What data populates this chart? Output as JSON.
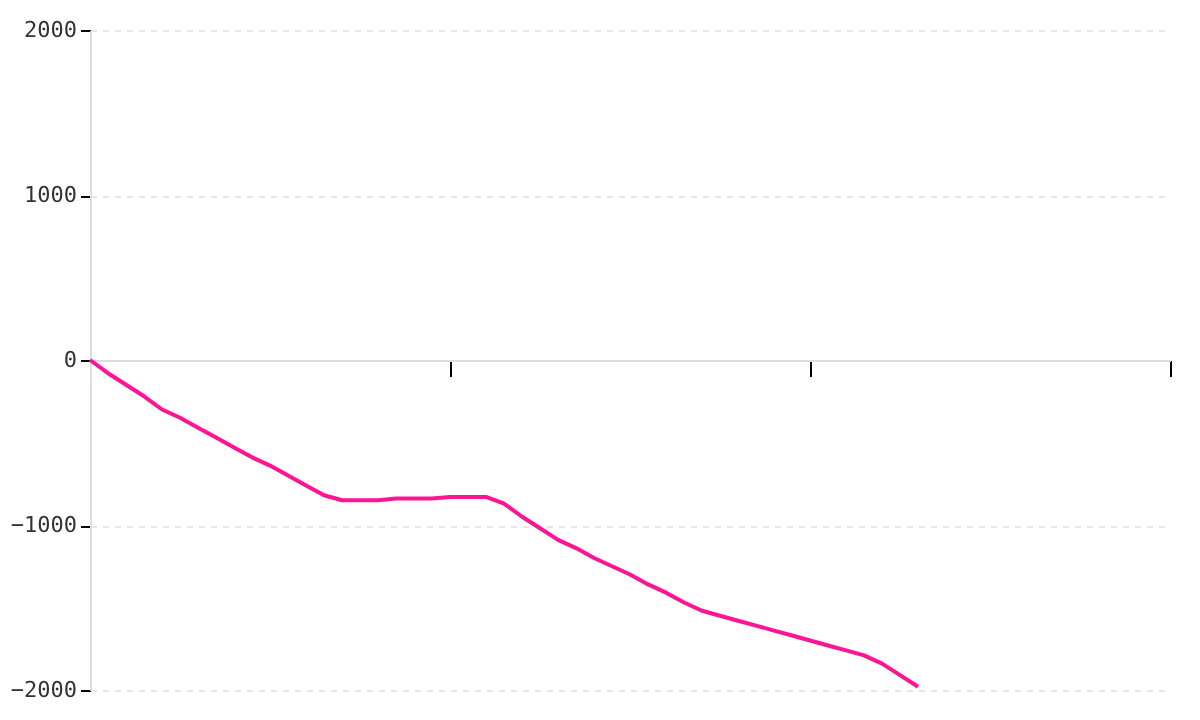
{
  "chart_data": {
    "type": "line",
    "categories": [
      null,
      null,
      null,
      null,
      null,
      null,
      null,
      null,
      null,
      null,
      null,
      null,
      null,
      null,
      null,
      null,
      null,
      null,
      null,
      null,
      null,
      null,
      null,
      null,
      null,
      null,
      null,
      null,
      null,
      null,
      null,
      null,
      null,
      null,
      null,
      null,
      null,
      null,
      null,
      null,
      null,
      null,
      null,
      null,
      null,
      null,
      null,
      null,
      null,
      null,
      null,
      null,
      null,
      null,
      null,
      null,
      null,
      null,
      null,
      null,
      null
    ],
    "series": [
      {
        "color": "#ff1493",
        "values": [
          0,
          -80,
          -150,
          -220,
          -300,
          -350,
          -410,
          -470,
          -530,
          -590,
          -640,
          -700,
          -760,
          -820,
          -850,
          -850,
          -850,
          -840,
          -840,
          -840,
          -830,
          -830,
          -830,
          -870,
          -950,
          -1020,
          -1090,
          -1140,
          -1200,
          -1250,
          -1300,
          -1360,
          -1410,
          -1470,
          -1520,
          -1550,
          -1580,
          -1610,
          -1640,
          -1670,
          -1700,
          -1730,
          -1760,
          -1790,
          -1840,
          -1910,
          -1980,
          null,
          null,
          null,
          null,
          null,
          null,
          null,
          null,
          null,
          null,
          null,
          null,
          null,
          null
        ]
      }
    ],
    "ylim": [
      -2000,
      2000
    ],
    "yticks": [
      -2000,
      -1000,
      0,
      1000,
      2000
    ],
    "tick_labels": "y",
    "grid": "y",
    "marker": "none",
    "line_style": "solid"
  }
}
